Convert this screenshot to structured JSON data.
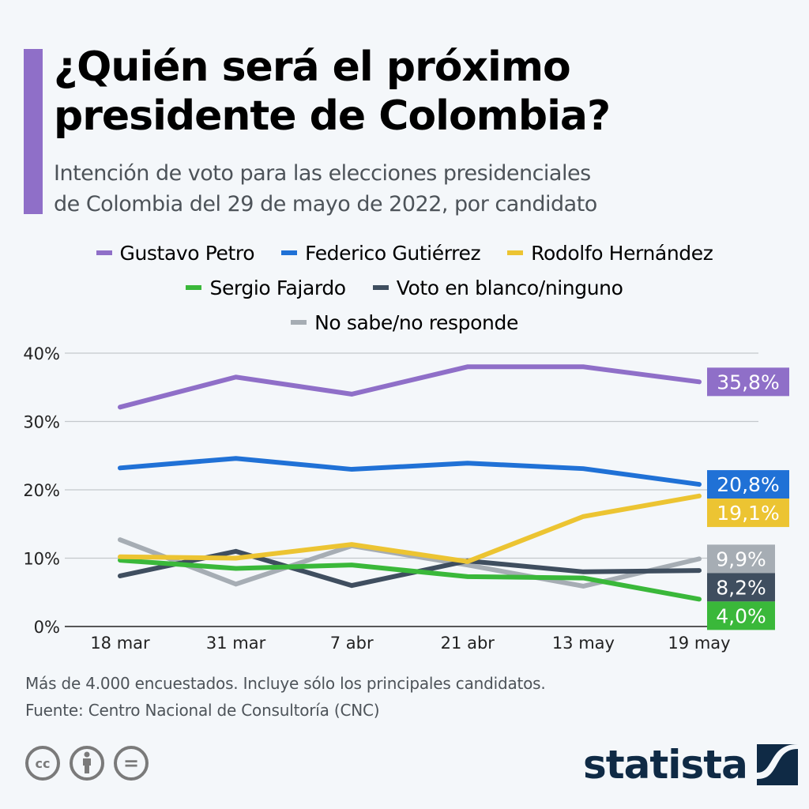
{
  "header": {
    "title": "¿Quién será el próximo presidente de Colombia?",
    "title_line1": "¿Quién será el próximo",
    "title_line2": "presidente de Colombia?",
    "subtitle_line1": "Intención de voto para las elecciones presidenciales",
    "subtitle_line2": "de Colombia del 29 de mayo de 2022, por candidato",
    "accent_color": "#8f6fc8"
  },
  "legend": [
    {
      "label": "Gustavo Petro",
      "color": "#8f6fc8"
    },
    {
      "label": "Federico Gutiérrez",
      "color": "#2071d6"
    },
    {
      "label": "Rodolfo Hernández",
      "color": "#ecc432"
    },
    {
      "label": "Sergio Fajardo",
      "color": "#3ab83a"
    },
    {
      "label": "Voto en blanco/ninguno",
      "color": "#3f4e5f"
    },
    {
      "label": "No sabe/no responde",
      "color": "#a6adb4"
    }
  ],
  "chart_data": {
    "type": "line",
    "title": "¿Quién será el próximo presidente de Colombia?",
    "xlabel": "",
    "ylabel": "",
    "x": [
      "18 mar",
      "31 mar",
      "7 abr",
      "21 abr",
      "13 may",
      "19 may"
    ],
    "y_ticks": [
      "0%",
      "10%",
      "20%",
      "30%",
      "40%"
    ],
    "ylim": [
      0,
      40
    ],
    "grid": true,
    "legend_position": "top-center",
    "series": [
      {
        "name": "Gustavo Petro",
        "color": "#8f6fc8",
        "values": [
          32.1,
          36.5,
          34.0,
          38.0,
          38.0,
          35.8
        ],
        "end_label": "35,8%"
      },
      {
        "name": "Federico Gutiérrez",
        "color": "#2071d6",
        "values": [
          23.2,
          24.6,
          23.0,
          23.9,
          23.1,
          20.8
        ],
        "end_label": "20,8%"
      },
      {
        "name": "Rodolfo Hernández",
        "color": "#ecc432",
        "values": [
          10.2,
          10.0,
          12.0,
          9.5,
          16.1,
          19.1
        ],
        "end_label": "19,1%"
      },
      {
        "name": "Sergio Fajardo",
        "color": "#3ab83a",
        "values": [
          9.7,
          8.5,
          9.0,
          7.3,
          7.1,
          4.0
        ],
        "end_label": "4,0%"
      },
      {
        "name": "Voto en blanco/ninguno",
        "color": "#3f4e5f",
        "values": [
          7.4,
          11.0,
          6.0,
          9.6,
          8.0,
          8.2
        ],
        "end_label": "8,2%"
      },
      {
        "name": "No sabe/no responde",
        "color": "#a6adb4",
        "values": [
          12.7,
          6.2,
          11.8,
          9.0,
          5.9,
          9.9
        ],
        "end_label": "9,9%"
      }
    ]
  },
  "footer": {
    "note": "Más de 4.000 encuestados. Incluye sólo los principales candidatos.",
    "source": "Fuente: Centro Nacional de Consultoría (CNC)",
    "license_icons": [
      "cc-icon",
      "attribution-icon",
      "no-derivatives-icon"
    ],
    "cc_label": "cc",
    "nd_label": "=",
    "brand": "statista",
    "brand_color": "#0f2a45"
  }
}
